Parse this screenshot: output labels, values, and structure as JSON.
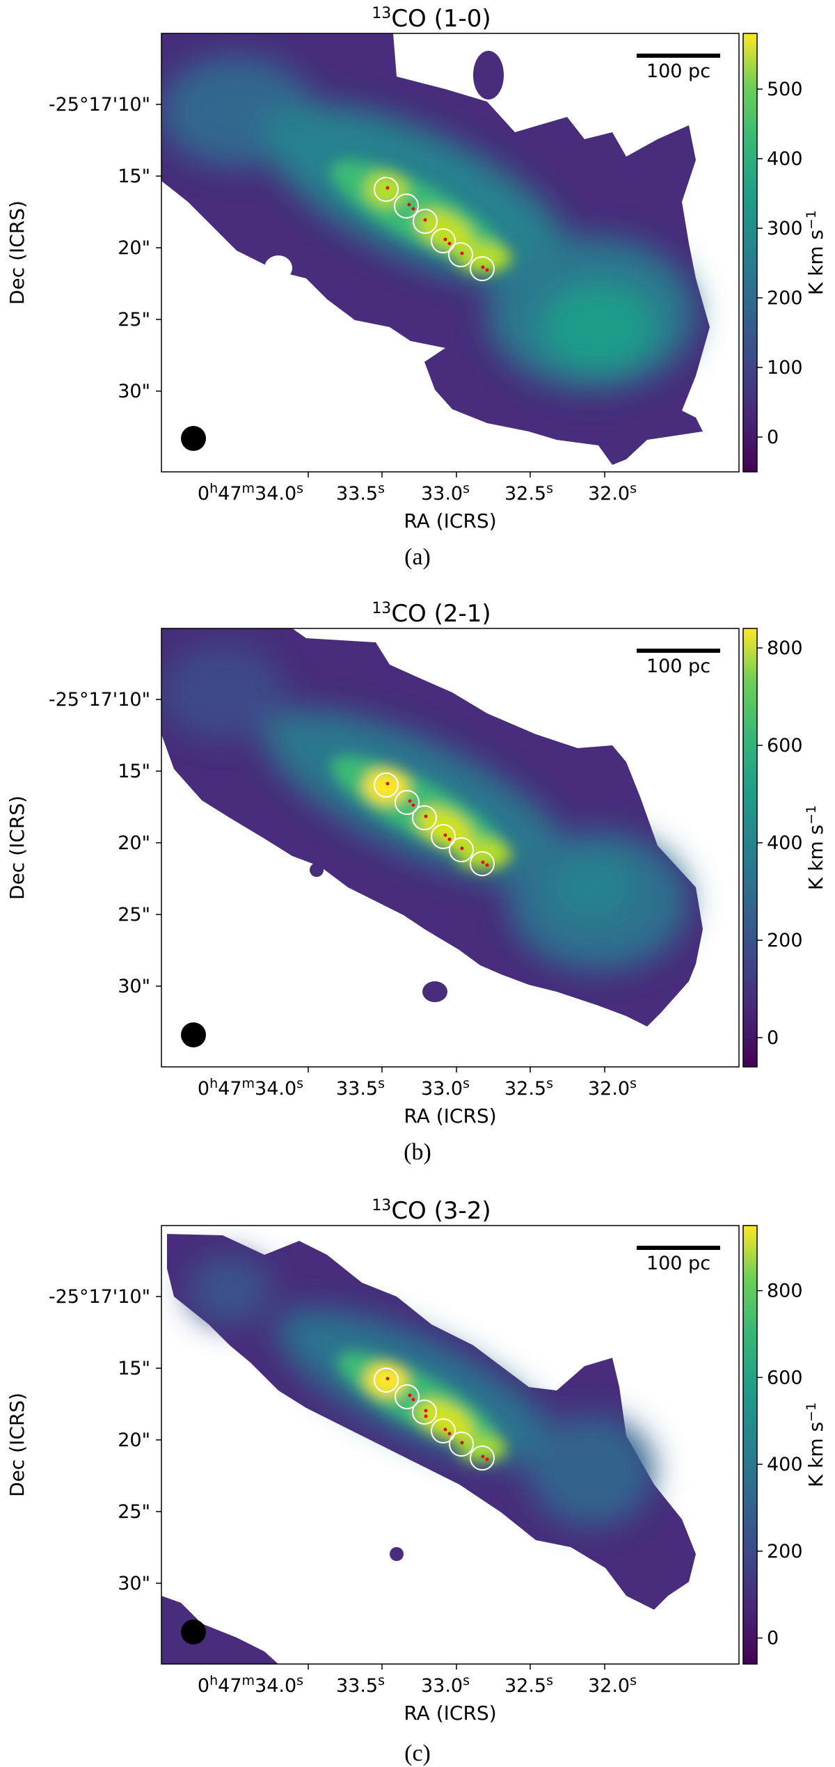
{
  "colormap": "viridis",
  "panels": [
    {
      "title_sup": "13",
      "title_main": "CO (1-0)",
      "caption": "(a)",
      "scalebar_label": "100 pc",
      "x_axis_label": "RA (ICRS)",
      "y_axis_label": "Dec (ICRS)",
      "x_ticks": [
        {
          "parts": [
            {
              "t": "0"
            },
            {
              "t": "h",
              "sup": true
            },
            {
              "t": "47"
            },
            {
              "t": "m",
              "sup": true
            },
            {
              "t": "34.0"
            },
            {
              "t": "s",
              "sup": true
            }
          ]
        },
        {
          "parts": [
            {
              "t": "33.5"
            },
            {
              "t": "s",
              "sup": true
            }
          ]
        },
        {
          "parts": [
            {
              "t": "33.0"
            },
            {
              "t": "s",
              "sup": true
            }
          ]
        },
        {
          "parts": [
            {
              "t": "32.5"
            },
            {
              "t": "s",
              "sup": true
            }
          ]
        },
        {
          "parts": [
            {
              "t": "32.0"
            },
            {
              "t": "s",
              "sup": true
            }
          ]
        }
      ],
      "y_ticks": [
        "-25°17'10\"",
        "15\"",
        "20\"",
        "25\"",
        "30\""
      ],
      "colorbar": {
        "label_main": "K km s",
        "label_sup": "−1",
        "ticks": [
          "500",
          "400",
          "300",
          "200",
          "100",
          "0"
        ],
        "min": -50,
        "max": 580
      }
    },
    {
      "title_sup": "13",
      "title_main": "CO (2-1)",
      "caption": "(b)",
      "scalebar_label": "100 pc",
      "x_axis_label": "RA (ICRS)",
      "y_axis_label": "Dec (ICRS)",
      "x_ticks": [
        {
          "parts": [
            {
              "t": "0"
            },
            {
              "t": "h",
              "sup": true
            },
            {
              "t": "47"
            },
            {
              "t": "m",
              "sup": true
            },
            {
              "t": "34.0"
            },
            {
              "t": "s",
              "sup": true
            }
          ]
        },
        {
          "parts": [
            {
              "t": "33.5"
            },
            {
              "t": "s",
              "sup": true
            }
          ]
        },
        {
          "parts": [
            {
              "t": "33.0"
            },
            {
              "t": "s",
              "sup": true
            }
          ]
        },
        {
          "parts": [
            {
              "t": "32.5"
            },
            {
              "t": "s",
              "sup": true
            }
          ]
        },
        {
          "parts": [
            {
              "t": "32.0"
            },
            {
              "t": "s",
              "sup": true
            }
          ]
        }
      ],
      "y_ticks": [
        "-25°17'10\"",
        "15\"",
        "20\"",
        "25\"",
        "30\""
      ],
      "colorbar": {
        "label_main": "K km s",
        "label_sup": "−1",
        "ticks": [
          "800",
          "600",
          "400",
          "200",
          "0"
        ],
        "min": -60,
        "max": 840
      }
    },
    {
      "title_sup": "13",
      "title_main": "CO (3-2)",
      "caption": "(c)",
      "scalebar_label": "100 pc",
      "x_axis_label": "RA (ICRS)",
      "y_axis_label": "Dec (ICRS)",
      "x_ticks": [
        {
          "parts": [
            {
              "t": "0"
            },
            {
              "t": "h",
              "sup": true
            },
            {
              "t": "47"
            },
            {
              "t": "m",
              "sup": true
            },
            {
              "t": "34.0"
            },
            {
              "t": "s",
              "sup": true
            }
          ]
        },
        {
          "parts": [
            {
              "t": "33.5"
            },
            {
              "t": "s",
              "sup": true
            }
          ]
        },
        {
          "parts": [
            {
              "t": "33.0"
            },
            {
              "t": "s",
              "sup": true
            }
          ]
        },
        {
          "parts": [
            {
              "t": "32.5"
            },
            {
              "t": "s",
              "sup": true
            }
          ]
        },
        {
          "parts": [
            {
              "t": "32.0"
            },
            {
              "t": "s",
              "sup": true
            }
          ]
        }
      ],
      "y_ticks": [
        "-25°17'10\"",
        "15\"",
        "20\"",
        "25\"",
        "30\""
      ],
      "colorbar": {
        "label_main": "K km s",
        "label_sup": "−1",
        "ticks": [
          "800",
          "600",
          "400",
          "200",
          "0"
        ],
        "min": -60,
        "max": 950
      }
    }
  ]
}
